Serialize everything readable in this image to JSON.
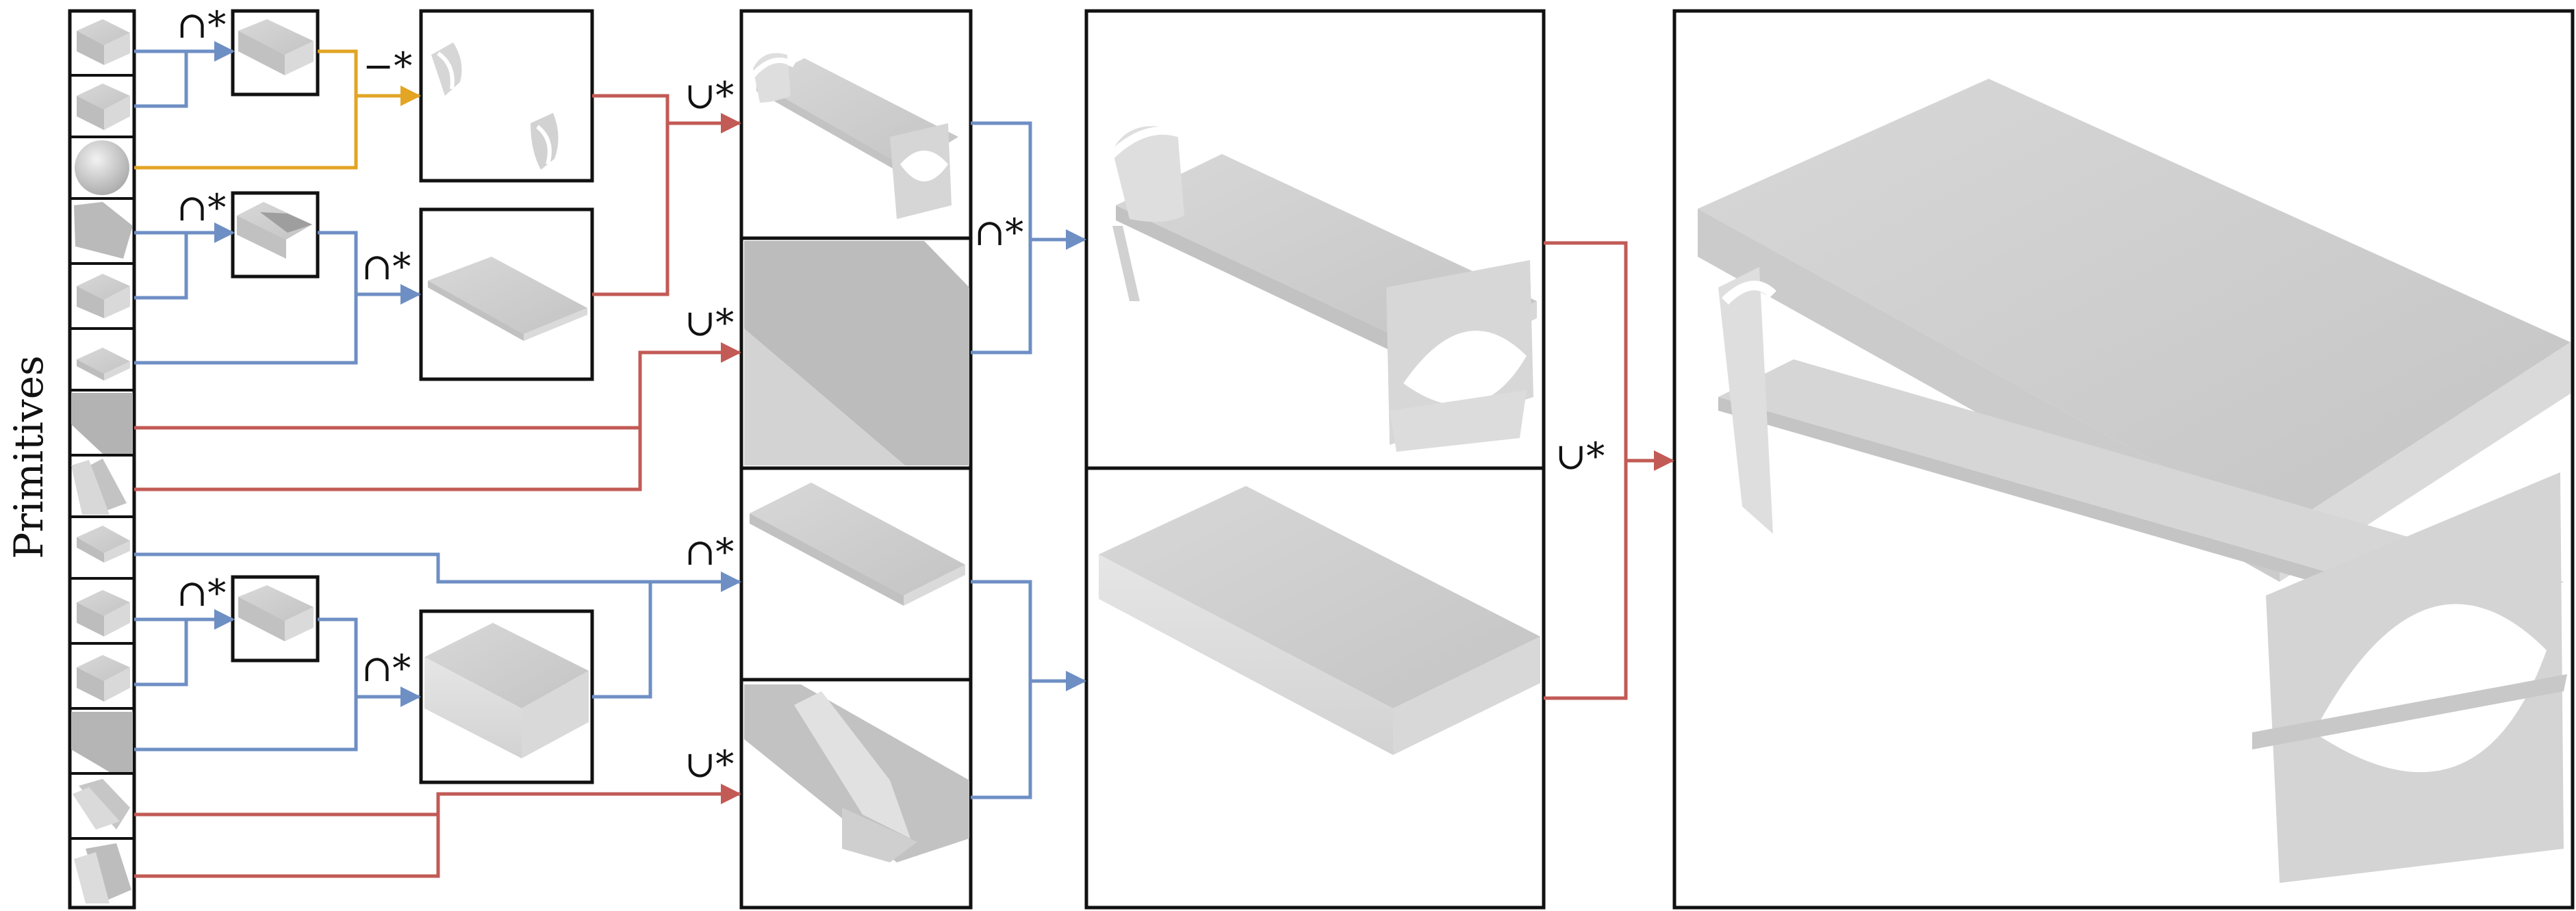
{
  "diagram": {
    "side_label": "Primitives",
    "primitives": [
      "box-primitive",
      "box-primitive",
      "sphere-primitive",
      "box-primitive",
      "box-primitive",
      "thin-plate-primitive",
      "large-box-primitive",
      "tilted-box-primitive",
      "thin-plate-primitive",
      "box-primitive",
      "box-primitive",
      "large-box-primitive",
      "tilted-box-primitive",
      "tilted-box-primitive"
    ],
    "operators": {
      "intersect_1": "∩*",
      "subtract_1": "−*",
      "union_1": "∪*",
      "intersect_2": "∩*",
      "intersect_3": "∩*",
      "union_2": "∪*",
      "intersect_4": "∩*",
      "intersect_5": "∩*",
      "intersect_6": "∩*",
      "union_3": "∪*",
      "intersect_7": "∩*",
      "union_final": "∪*"
    },
    "colors": {
      "intersection_wire": "#6e8fc4",
      "union_wire": "#c25a55",
      "difference_wire": "#e2a524",
      "shape_fill": "#cfcfcf",
      "shape_shadow": "#b5b5b5"
    },
    "results": [
      "box-result",
      "cylindrical-cutout-result",
      "tilted-box-result",
      "thin-plate-result",
      "bed-frame-result",
      "slab-result",
      "large-box-result",
      "tilted-plate-result",
      "table-frame-result",
      "table-top-result",
      "final-table-result"
    ]
  }
}
